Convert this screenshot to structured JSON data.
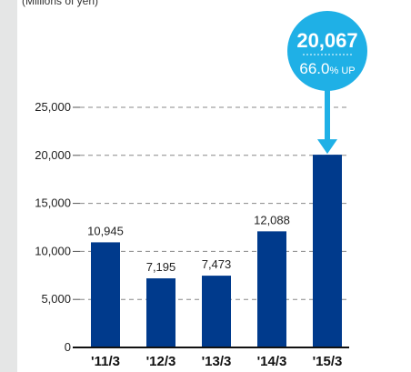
{
  "colors": {
    "bar": "#003a8c",
    "callout": "#1fb0e6",
    "gridline": "#888888",
    "axis_text": "#222222",
    "left_panel": "#e5e6e6"
  },
  "chart_data": {
    "type": "bar",
    "unit_label": "(Millions of yen)",
    "categories": [
      "'11/3",
      "'12/3",
      "'13/3",
      "'14/3",
      "'15/3"
    ],
    "values": [
      10945,
      7195,
      7473,
      12088,
      20067
    ],
    "value_labels": [
      "10,945",
      "7,195",
      "7,473",
      "12,088",
      ""
    ],
    "y_ticks": [
      0,
      5000,
      10000,
      15000,
      20000,
      25000
    ],
    "y_tick_labels": [
      "0",
      "5,000",
      "10,000",
      "15,000",
      "20,000",
      "25,000"
    ],
    "ylim": [
      0,
      25000
    ],
    "grid": true,
    "callout": {
      "category_index": 4,
      "value_label": "20,067",
      "change_number": "66.0",
      "change_suffix": "% UP",
      "icon": "down-arrow-icon"
    }
  }
}
